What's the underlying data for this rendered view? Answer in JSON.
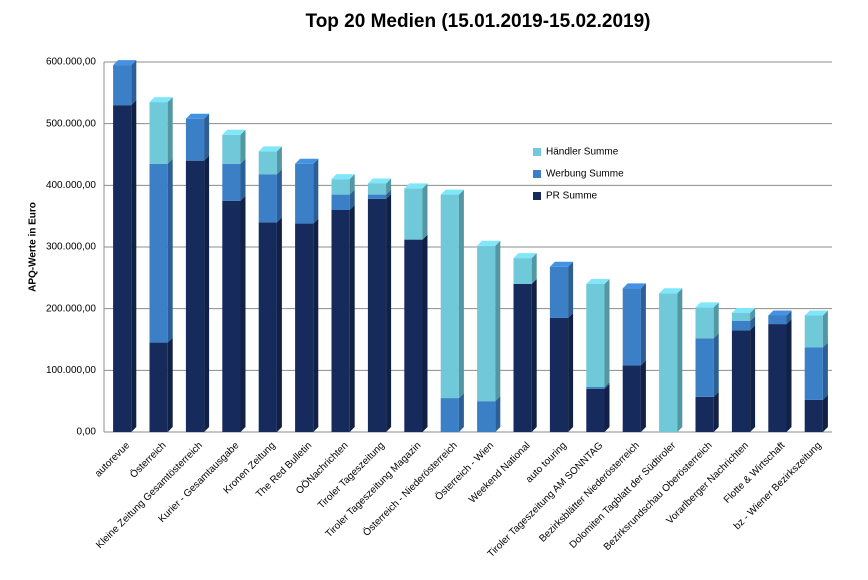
{
  "chart_data": {
    "type": "bar",
    "stacked": true,
    "title": "Top 20 Medien (15.01.2019-15.02.2019)",
    "y_label": "APQ-Werte in Euro",
    "categories": [
      "autorevue",
      "Österreich",
      "Kleine Zeitung Gesamtösterreich",
      "Kurier - Gesamtausgabe",
      "Kronen Zeitung",
      "The Red Bulletin",
      "OÖNachrichten",
      "Tiroler Tageszeitung",
      "Tiroler Tageszeitung Magazin",
      "Österreich - Niederösterreich",
      "Österreich - Wien",
      "Weekend National",
      "auto touring",
      "Tiroler Tageszeitung AM SONNTAG",
      "Bezirksblätter Niederösterreich",
      "Dolomiten Tagblatt der Südtiroler",
      "Bezirksrundschau Oberösterreich",
      "Vorarlberger Nachrichten",
      "Flotte & Wirtschaft",
      "bz - Wiener Bezirkszeitung"
    ],
    "series": [
      {
        "name": "PR Summe",
        "color": "#172a5c",
        "values": [
          530000,
          145000,
          440000,
          375000,
          340000,
          338000,
          360000,
          378000,
          312000,
          0,
          0,
          240000,
          185000,
          70000,
          108000,
          0,
          57000,
          165000,
          175000,
          52000
        ]
      },
      {
        "name": "Werbung Summe",
        "color": "#3b7fc6",
        "values": [
          65000,
          290000,
          68000,
          60000,
          78000,
          97000,
          25000,
          7000,
          0,
          55000,
          50000,
          0,
          83000,
          3000,
          125000,
          0,
          95000,
          15000,
          14000,
          85000
        ]
      },
      {
        "name": "Händler Summe",
        "color": "#6fc9d9",
        "values": [
          0,
          100000,
          0,
          47000,
          37000,
          0,
          25000,
          18000,
          83000,
          330000,
          252000,
          42000,
          0,
          167000,
          0,
          225000,
          50000,
          13000,
          0,
          52000
        ]
      }
    ],
    "ylim": [
      0,
      600000
    ],
    "yticks": [
      {
        "value": 0,
        "label": "0,00"
      },
      {
        "value": 100000,
        "label": "100.000,00"
      },
      {
        "value": 200000,
        "label": "200.000,00"
      },
      {
        "value": 300000,
        "label": "300.000,00"
      },
      {
        "value": 400000,
        "label": "400.000,00"
      },
      {
        "value": 500000,
        "label": "500.000,00"
      },
      {
        "value": 600000,
        "label": "600.000,00"
      }
    ],
    "grid": true,
    "legend": "inside-right"
  }
}
